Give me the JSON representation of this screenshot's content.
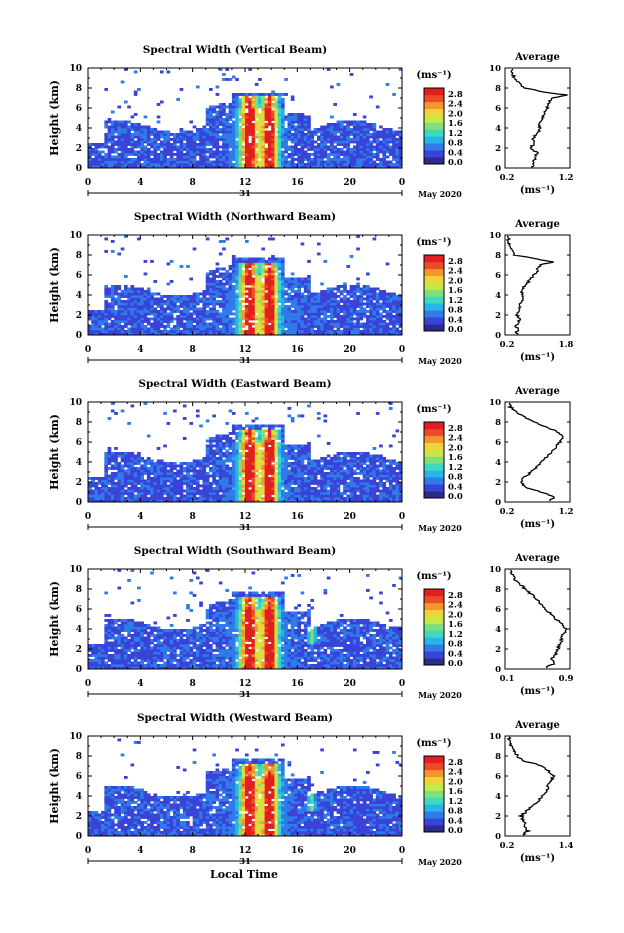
{
  "figure": {
    "xlabel": "Local Time",
    "date_label": "May 2020",
    "day_label": "31",
    "ylabel": "Height (km)",
    "unit": "(ms⁻¹)",
    "avg_title": "Average",
    "avg_xlabel": "(ms⁻¹)",
    "x_ticks": [
      "0",
      "4",
      "8",
      "12",
      "16",
      "20",
      "0"
    ],
    "y_ticks": [
      "0",
      "2",
      "4",
      "6",
      "8",
      "10"
    ],
    "colorbar_ticks": [
      "0.0",
      "0.4",
      "0.8",
      "1.2",
      "1.6",
      "2.0",
      "2.4",
      "2.8"
    ],
    "colormap": [
      "#2b2b8c",
      "#3a43d8",
      "#2f7be8",
      "#27b4e6",
      "#3fd8c0",
      "#7fe07a",
      "#c8e84a",
      "#f2d23a",
      "#f5962d",
      "#ec4a28",
      "#e02020"
    ]
  },
  "chart_data": [
    {
      "type": "heatmap",
      "title": "Spectral Width (Vertical Beam)",
      "x_range": [
        0,
        24
      ],
      "y_range": [
        0,
        10
      ],
      "color_range": [
        0,
        2.8
      ],
      "avg_xlim": [
        0.2,
        1.2
      ],
      "avg_ticks": [
        "0.2",
        "1.2"
      ],
      "avg_profile": {
        "height": [
          0.2,
          1.0,
          1.5,
          2.0,
          2.5,
          3.0,
          3.5,
          4.0,
          4.5,
          5.0,
          5.5,
          6.0,
          6.5,
          7.0,
          7.3,
          7.6,
          8.0,
          8.5,
          9.0,
          9.5
        ],
        "value": [
          0.62,
          0.66,
          0.7,
          0.6,
          0.65,
          0.64,
          0.7,
          0.74,
          0.72,
          0.78,
          0.82,
          0.85,
          0.88,
          0.92,
          1.15,
          0.8,
          0.5,
          0.42,
          0.35,
          0.3
        ]
      }
    },
    {
      "type": "heatmap",
      "title": "Spectral Width (Northward Beam)",
      "x_range": [
        0,
        24
      ],
      "y_range": [
        0,
        10
      ],
      "color_range": [
        0,
        2.8
      ],
      "avg_xlim": [
        0.2,
        1.8
      ],
      "avg_ticks": [
        "0.2",
        "1.8"
      ],
      "avg_profile": {
        "height": [
          0.2,
          1.0,
          1.5,
          2.0,
          2.5,
          3.0,
          3.5,
          4.0,
          4.5,
          5.0,
          5.5,
          6.0,
          6.5,
          7.0,
          7.3,
          7.6,
          8.0,
          8.5,
          9.0,
          9.5
        ],
        "value": [
          0.5,
          0.48,
          0.55,
          0.5,
          0.58,
          0.56,
          0.62,
          0.66,
          0.6,
          0.72,
          0.8,
          0.9,
          1.0,
          1.05,
          1.4,
          1.0,
          0.45,
          0.35,
          0.3,
          0.28
        ]
      }
    },
    {
      "type": "heatmap",
      "title": "Spectral Width (Eastward Beam)",
      "x_range": [
        0,
        24
      ],
      "y_range": [
        0,
        10
      ],
      "color_range": [
        0,
        2.8
      ],
      "avg_xlim": [
        0.2,
        1.2
      ],
      "avg_ticks": [
        "0.2",
        "1.2"
      ],
      "avg_profile": {
        "height": [
          0.2,
          0.5,
          1.0,
          1.5,
          2.0,
          2.5,
          3.0,
          3.5,
          4.0,
          4.5,
          5.0,
          5.5,
          6.0,
          6.5,
          7.0,
          7.5,
          8.0,
          8.5,
          9.0,
          9.5
        ],
        "value": [
          0.9,
          0.95,
          0.75,
          0.5,
          0.45,
          0.5,
          0.6,
          0.68,
          0.75,
          0.85,
          0.92,
          0.98,
          1.05,
          1.1,
          1.0,
          0.85,
          0.65,
          0.5,
          0.38,
          0.28
        ]
      }
    },
    {
      "type": "heatmap",
      "title": "Spectral Width (Southward Beam)",
      "x_range": [
        0,
        24
      ],
      "y_range": [
        0,
        10
      ],
      "color_range": [
        0,
        2.8
      ],
      "avg_xlim": [
        0.1,
        0.9
      ],
      "avg_ticks": [
        "0.1",
        "0.9"
      ],
      "avg_profile": {
        "height": [
          0.2,
          0.5,
          1.0,
          1.5,
          2.0,
          2.5,
          3.0,
          3.5,
          4.0,
          4.5,
          5.0,
          5.5,
          6.0,
          6.5,
          7.0,
          7.5,
          8.0,
          8.5,
          9.0,
          9.5
        ],
        "value": [
          0.6,
          0.7,
          0.68,
          0.72,
          0.75,
          0.78,
          0.8,
          0.82,
          0.85,
          0.8,
          0.72,
          0.66,
          0.6,
          0.55,
          0.48,
          0.42,
          0.35,
          0.28,
          0.22,
          0.18
        ]
      }
    },
    {
      "type": "heatmap",
      "title": "Spectral Width (Westward Beam)",
      "x_range": [
        0,
        24
      ],
      "y_range": [
        0,
        10
      ],
      "color_range": [
        0,
        2.8
      ],
      "avg_xlim": [
        0.2,
        1.4
      ],
      "avg_ticks": [
        "0.2",
        "1.4"
      ],
      "avg_profile": {
        "height": [
          0.2,
          0.5,
          1.0,
          1.5,
          2.0,
          2.5,
          3.0,
          3.5,
          4.0,
          4.5,
          5.0,
          5.5,
          6.0,
          6.5,
          7.0,
          7.5,
          8.0,
          8.5,
          9.0,
          9.5
        ],
        "value": [
          0.55,
          0.62,
          0.58,
          0.55,
          0.5,
          0.6,
          0.72,
          0.82,
          0.9,
          0.95,
          1.0,
          1.05,
          1.1,
          1.0,
          0.9,
          0.55,
          0.42,
          0.38,
          0.32,
          0.28
        ]
      }
    }
  ]
}
